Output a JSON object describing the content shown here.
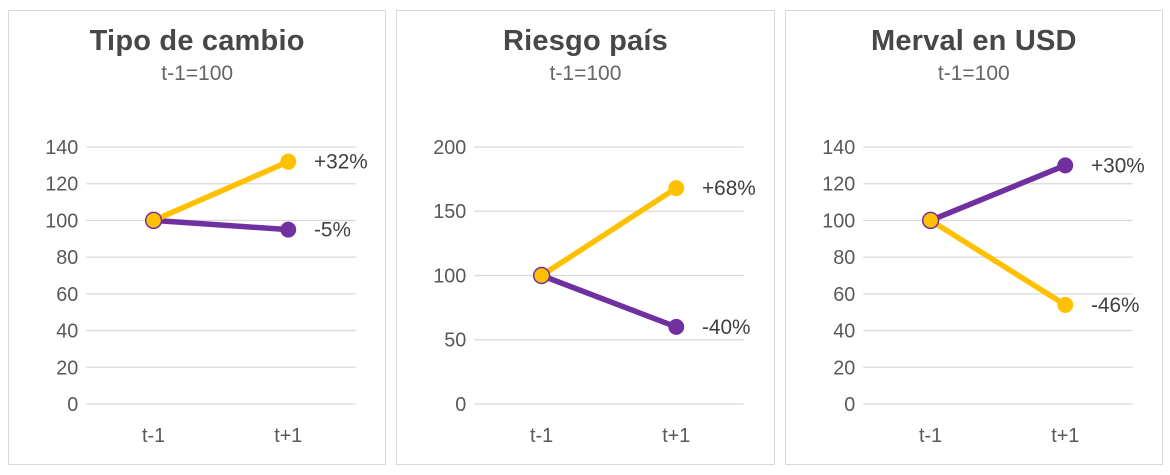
{
  "colors": {
    "yellow": "#FFC000",
    "purple": "#7030A0",
    "gridline": "#D9D9D9",
    "panel_border": "#D9D9D9",
    "title_text": "#474747",
    "subtitle_text": "#666666",
    "axis_text": "#595959",
    "data_label_text": "#404040"
  },
  "chart_data": [
    {
      "type": "line",
      "title": "Tipo de cambio",
      "subtitle": "t-1=100",
      "categories": [
        "t-1",
        "t+1"
      ],
      "xlabel": "",
      "ylabel": "",
      "ylim": [
        0,
        140
      ],
      "yticks": [
        0,
        20,
        40,
        60,
        80,
        100,
        120,
        140
      ],
      "grid": true,
      "legend": "none",
      "series": [
        {
          "name": "purple-series",
          "color": "#7030A0",
          "values": [
            100,
            95
          ],
          "end_label": "-5%"
        },
        {
          "name": "yellow-series",
          "color": "#FFC000",
          "values": [
            100,
            132
          ],
          "end_label": "+32%"
        }
      ]
    },
    {
      "type": "line",
      "title": "Riesgo país",
      "subtitle": "t-1=100",
      "categories": [
        "t-1",
        "t+1"
      ],
      "xlabel": "",
      "ylabel": "",
      "ylim": [
        0,
        200
      ],
      "yticks": [
        0,
        50,
        100,
        150,
        200
      ],
      "grid": true,
      "legend": "none",
      "series": [
        {
          "name": "purple-series",
          "color": "#7030A0",
          "values": [
            100,
            60
          ],
          "end_label": "-40%"
        },
        {
          "name": "yellow-series",
          "color": "#FFC000",
          "values": [
            100,
            168
          ],
          "end_label": "+68%"
        }
      ]
    },
    {
      "type": "line",
      "title": "Merval en USD",
      "subtitle": "t-1=100",
      "categories": [
        "t-1",
        "t+1"
      ],
      "xlabel": "",
      "ylabel": "",
      "ylim": [
        0,
        140
      ],
      "yticks": [
        0,
        20,
        40,
        60,
        80,
        100,
        120,
        140
      ],
      "grid": true,
      "legend": "none",
      "series": [
        {
          "name": "purple-series",
          "color": "#7030A0",
          "values": [
            100,
            130
          ],
          "end_label": "+30%"
        },
        {
          "name": "yellow-series",
          "color": "#FFC000",
          "values": [
            100,
            54
          ],
          "end_label": "-46%"
        }
      ]
    }
  ]
}
